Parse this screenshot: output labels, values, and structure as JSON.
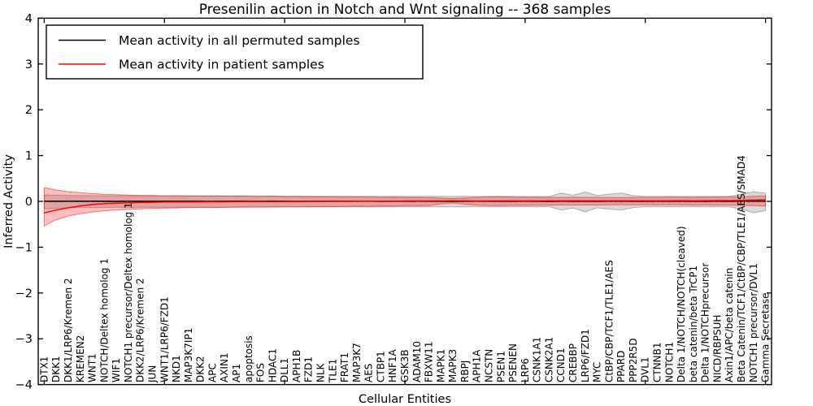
{
  "title": "Presenilin action in Notch and Wnt signaling -- 368 samples",
  "legend": {
    "items": [
      {
        "label": "Mean activity in all permuted samples",
        "color": "#000000"
      },
      {
        "label": "Mean activity in patient samples",
        "color": "#ff0000"
      }
    ]
  },
  "chart_data": {
    "type": "line",
    "title": "Presenilin action in Notch and Wnt signaling -- 368 samples",
    "xlabel": "Cellular Entities",
    "ylabel": "Inferred Activity",
    "ylim": [
      -4,
      4
    ],
    "yticks": [
      4,
      3,
      2,
      1,
      0,
      -1,
      -2,
      -3,
      -4
    ],
    "xtick_major_every": 10,
    "grid": false,
    "legend_position": "upper left",
    "zero_reference_line": 0,
    "categories": [
      "DTX1",
      "DKK1",
      "DKK1/LRP6/Kremen 2",
      "KREMEN2",
      "WNT1",
      "NOTCH/Deltex homolog 1",
      "WIF1",
      "NOTCH1 precursor/Deltex homolog 1",
      "DKK2/LRP6/Kremen 2",
      "JUN",
      "WNT1/LRP6/FZD1",
      "NKD1",
      "MAP3K7IP1",
      "DKK2",
      "APC",
      "AXIN1",
      "AP1",
      "apoptosis",
      "FOS",
      "HDAC1",
      "DLL1",
      "APH1B",
      "FZD1",
      "NLK",
      "TLE1",
      "FRAT1",
      "MAP3K7",
      "AES",
      "CTBP1",
      "HNF1A",
      "GSK3B",
      "ADAM10",
      "FBXW11",
      "MAPK1",
      "MAPK3",
      "RBPJ",
      "APH1A",
      "NCSTN",
      "PSEN1",
      "PSENEN",
      "LRP6",
      "CSNK1A1",
      "CSNK2A1",
      "CCND1",
      "CREBBP",
      "LRP6/FZD1",
      "MYC",
      "CtBP/CBP/TCF1/TLE1/AES",
      "PPARD",
      "PPP2R5D",
      "DVL1",
      "CTNNB1",
      "NOTCH1",
      "Delta 1/NOTCH/NOTCH(cleaved)",
      "beta catenin/beta TrCP1",
      "Delta 1/NOTCHprecursor",
      "NICD/RBPSUH",
      "Axin1/APC/beta catenin",
      "Beta Catenin/TCF1/CtBP/CBP/TLE1/AES/SMAD4",
      "NOTCH1 precursor/DVL1",
      "Gamma Secretase"
    ],
    "series": [
      {
        "name": "Mean activity in all permuted samples",
        "color": "#000000",
        "band_fill": "rgba(128,128,128,0.30)",
        "band_stroke": "rgba(105,105,105,0.45)",
        "values": [
          0.004,
          0.002,
          0.003,
          0.001,
          0.004,
          0.002,
          0.0,
          0.003,
          0.001,
          0.002,
          0.004,
          0.001,
          0.003,
          0.002,
          0.0,
          0.002,
          0.003,
          0.001,
          0.002,
          0.003,
          0.001,
          0.0,
          0.002,
          0.001,
          0.003,
          0.002,
          0.001,
          0.003,
          0.0,
          0.002,
          0.001,
          0.003,
          0.002,
          0.001,
          0.0,
          0.002,
          0.003,
          0.001,
          0.002,
          0.001,
          0.003,
          0.002,
          0.0,
          0.004,
          0.002,
          0.005,
          0.001,
          0.003,
          0.004,
          0.002,
          0.001,
          0.003,
          0.002,
          0.004,
          0.001,
          0.002,
          0.003,
          0.001,
          0.004,
          0.005,
          0.003
        ],
        "band_upper": [
          0.14,
          0.135,
          0.13,
          0.126,
          0.124,
          0.122,
          0.12,
          0.122,
          0.119,
          0.121,
          0.118,
          0.12,
          0.117,
          0.119,
          0.116,
          0.118,
          0.115,
          0.117,
          0.114,
          0.116,
          0.113,
          0.115,
          0.112,
          0.114,
          0.112,
          0.113,
          0.111,
          0.113,
          0.11,
          0.112,
          0.11,
          0.111,
          0.11,
          0.112,
          0.109,
          0.111,
          0.108,
          0.11,
          0.108,
          0.109,
          0.107,
          0.109,
          0.107,
          0.18,
          0.135,
          0.205,
          0.13,
          0.16,
          0.18,
          0.125,
          0.11,
          0.108,
          0.11,
          0.109,
          0.108,
          0.11,
          0.109,
          0.112,
          0.16,
          0.21,
          0.18
        ],
        "band_lower": [
          -0.16,
          -0.15,
          -0.142,
          -0.138,
          -0.134,
          -0.131,
          -0.129,
          -0.131,
          -0.128,
          -0.13,
          -0.127,
          -0.129,
          -0.126,
          -0.128,
          -0.125,
          -0.127,
          -0.124,
          -0.126,
          -0.123,
          -0.125,
          -0.122,
          -0.124,
          -0.121,
          -0.123,
          -0.121,
          -0.122,
          -0.12,
          -0.122,
          -0.119,
          -0.121,
          -0.119,
          -0.12,
          -0.119,
          -0.121,
          -0.118,
          -0.12,
          -0.117,
          -0.119,
          -0.117,
          -0.118,
          -0.116,
          -0.118,
          -0.116,
          -0.19,
          -0.145,
          -0.23,
          -0.14,
          -0.17,
          -0.19,
          -0.135,
          -0.119,
          -0.117,
          -0.119,
          -0.118,
          -0.117,
          -0.119,
          -0.118,
          -0.121,
          -0.17,
          -0.25,
          -0.2
        ]
      },
      {
        "name": "Mean activity in patient samples",
        "color": "#ff0000",
        "band_fill": "rgba(255,0,0,0.25)",
        "band_stroke": "rgba(255,0,0,0.50)",
        "values": [
          -0.25,
          -0.19,
          -0.14,
          -0.1,
          -0.07,
          -0.05,
          -0.04,
          -0.03,
          -0.025,
          -0.02,
          -0.015,
          -0.012,
          -0.01,
          -0.01,
          -0.008,
          -0.008,
          -0.006,
          -0.005,
          -0.005,
          -0.004,
          -0.003,
          -0.002,
          -0.002,
          0.0,
          0.0,
          0.002,
          0.003,
          0.004,
          0.005,
          0.006,
          0.007,
          0.008,
          0.008,
          0.01,
          0.012,
          0.01,
          0.009,
          0.009,
          0.01,
          0.01,
          0.011,
          0.011,
          0.012,
          0.013,
          0.012,
          0.014,
          0.013,
          0.014,
          0.013,
          0.014,
          0.015,
          0.014,
          0.015,
          0.016,
          0.015,
          0.016,
          0.017,
          0.018,
          0.022,
          0.028,
          0.035
        ],
        "band_upper": [
          0.3,
          0.25,
          0.21,
          0.19,
          0.17,
          0.155,
          0.145,
          0.138,
          0.132,
          0.127,
          0.122,
          0.124,
          0.119,
          0.116,
          0.119,
          0.113,
          0.115,
          0.111,
          0.108,
          0.11,
          0.104,
          0.106,
          0.102,
          0.098,
          0.101,
          0.094,
          0.097,
          0.092,
          0.089,
          0.091,
          0.085,
          0.087,
          0.082,
          0.072,
          0.062,
          0.072,
          0.088,
          0.097,
          0.099,
          0.092,
          0.09,
          0.087,
          0.089,
          0.086,
          0.09,
          0.086,
          0.089,
          0.085,
          0.082,
          0.086,
          0.089,
          0.086,
          0.09,
          0.091,
          0.087,
          0.09,
          0.091,
          0.095,
          0.1,
          0.11,
          0.122
        ],
        "band_lower": [
          -0.53,
          -0.4,
          -0.32,
          -0.27,
          -0.235,
          -0.208,
          -0.188,
          -0.174,
          -0.163,
          -0.154,
          -0.146,
          -0.143,
          -0.138,
          -0.133,
          -0.136,
          -0.13,
          -0.127,
          -0.123,
          -0.126,
          -0.121,
          -0.12,
          -0.117,
          -0.119,
          -0.112,
          -0.115,
          -0.11,
          -0.107,
          -0.11,
          -0.103,
          -0.105,
          -0.093,
          -0.096,
          -0.091,
          -0.055,
          -0.035,
          -0.062,
          -0.082,
          -0.091,
          -0.09,
          -0.086,
          -0.082,
          -0.085,
          -0.081,
          -0.077,
          -0.081,
          -0.076,
          -0.08,
          -0.076,
          -0.072,
          -0.076,
          -0.072,
          -0.075,
          -0.071,
          -0.076,
          -0.08,
          -0.076,
          -0.08,
          -0.081,
          -0.086,
          -0.092,
          -0.102
        ]
      }
    ]
  }
}
